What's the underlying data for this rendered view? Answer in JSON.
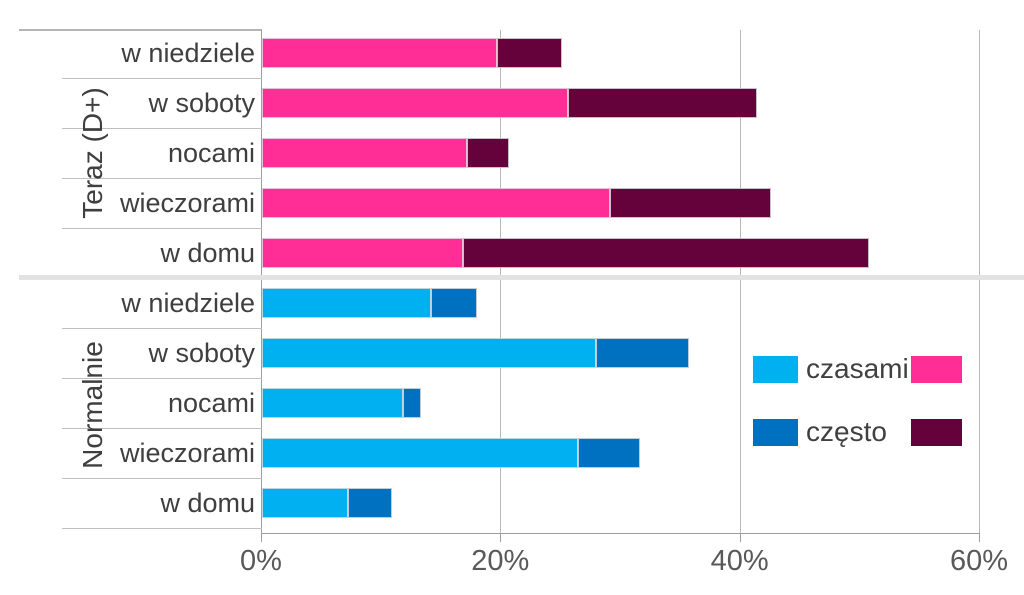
{
  "chart_data": {
    "type": "bar",
    "orientation": "horizontal",
    "stacked": true,
    "title": "",
    "x_axis": {
      "min": 0,
      "max": 60,
      "tick_values": [
        0,
        20,
        40,
        60
      ],
      "tick_labels": [
        "0%",
        "20%",
        "40%",
        "60%"
      ],
      "gridlines": true
    },
    "series_names": [
      "czasami",
      "często"
    ],
    "groups": [
      {
        "label": "Teraz (D+)",
        "categories": [
          "w niedziele",
          "w soboty",
          "nocami",
          "wieczorami",
          "w domu"
        ],
        "colors": {
          "czasami": "#ff2e96",
          "czesto": "#65023c"
        },
        "series": [
          {
            "name": "czasami",
            "values": [
              19.6,
              25.6,
              17.1,
              29.1,
              16.8
            ]
          },
          {
            "name": "często",
            "values": [
              5.5,
              15.8,
              3.5,
              13.4,
              33.9
            ]
          }
        ],
        "totals": [
          25.1,
          41.4,
          20.6,
          42.5,
          50.7
        ]
      },
      {
        "label": "Normalnie",
        "categories": [
          "w niedziele",
          "w soboty",
          "nocami",
          "wieczorami",
          "w domu"
        ],
        "colors": {
          "czasami": "#00b0f0",
          "czesto": "#0070c0"
        },
        "series": [
          {
            "name": "czasami",
            "values": [
              14.1,
              27.9,
              11.8,
              26.4,
              7.2
            ]
          },
          {
            "name": "często",
            "values": [
              3.9,
              7.8,
              1.5,
              5.2,
              3.7
            ]
          }
        ],
        "totals": [
          18.0,
          35.7,
          13.3,
          31.6,
          10.9
        ]
      }
    ],
    "legend": {
      "position": "right",
      "entries": [
        {
          "label": "czasami",
          "colors": [
            "#00b0f0",
            "#ff2e96"
          ]
        },
        {
          "label": "często",
          "colors": [
            "#0070c0",
            "#65023c"
          ]
        }
      ]
    },
    "colors_semantic": {
      "teraz_czasami_pink": "#ff2e96",
      "teraz_czesto_maroon": "#65023c",
      "normalnie_czasami_lightblue": "#00b0f0",
      "normalnie_czesto_blue": "#0070c0",
      "gridline_gray": "#b8b8b8",
      "text_dark_gray": "#3f3f3f",
      "text_axis_gray": "#595959",
      "group_separator_gray": "#e2e2e2"
    }
  }
}
